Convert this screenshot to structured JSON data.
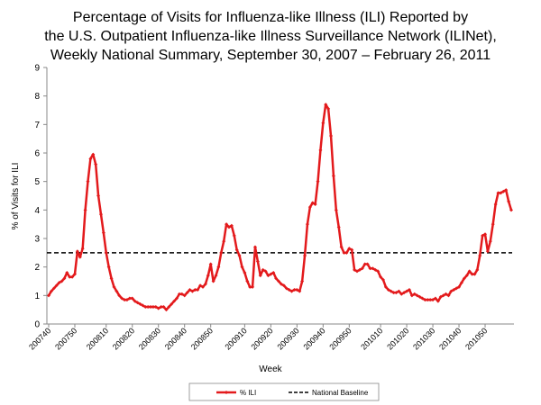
{
  "chart_data": {
    "type": "line",
    "title": [
      "Percentage of Visits for Influenza-like Illness (ILI) Reported by",
      "the U.S. Outpatient Influenza-like Illness Surveillance Network (ILINet),",
      "Weekly National Summary, September 30, 2007 – February 26, 2011"
    ],
    "x_label": "Week",
    "y_label": "% of Visits for ILI",
    "categories": [
      "200740",
      null,
      null,
      null,
      null,
      null,
      null,
      null,
      null,
      null,
      "200750",
      null,
      null,
      null,
      null,
      null,
      null,
      null,
      null,
      null,
      null,
      null,
      "200810",
      null,
      null,
      null,
      null,
      null,
      null,
      null,
      null,
      null,
      "200820",
      null,
      null,
      null,
      null,
      null,
      null,
      null,
      null,
      null,
      "200830",
      null,
      null,
      null,
      null,
      null,
      null,
      null,
      null,
      null,
      "200840",
      null,
      null,
      null,
      null,
      null,
      null,
      null,
      null,
      null,
      "200850",
      null,
      null,
      null,
      null,
      null,
      null,
      null,
      null,
      null,
      null,
      null,
      null,
      "200910",
      null,
      null,
      null,
      null,
      null,
      null,
      null,
      null,
      null,
      "200920",
      null,
      null,
      null,
      null,
      null,
      null,
      null,
      null,
      null,
      "200930",
      null,
      null,
      null,
      null,
      null,
      null,
      null,
      null,
      null,
      "200940",
      null,
      null,
      null,
      null,
      null,
      null,
      null,
      null,
      null,
      "200950",
      null,
      null,
      null,
      null,
      null,
      null,
      null,
      null,
      null,
      null,
      null,
      "201010",
      null,
      null,
      null,
      null,
      null,
      null,
      null,
      null,
      null,
      "201020",
      null,
      null,
      null,
      null,
      null,
      null,
      null,
      null,
      null,
      "201030",
      null,
      null,
      null,
      null,
      null,
      null,
      null,
      null,
      null,
      "201040",
      null,
      null,
      null,
      null,
      null,
      null,
      null,
      null,
      null,
      "201050",
      null,
      null,
      null,
      null,
      null,
      null,
      null,
      null,
      null,
      null
    ],
    "series": [
      {
        "name": "% ILI",
        "color": "#e31a1c",
        "values": [
          1.0,
          1.15,
          1.25,
          1.35,
          1.45,
          1.5,
          1.6,
          1.8,
          1.65,
          1.65,
          1.75,
          2.55,
          2.35,
          2.65,
          4.0,
          5.0,
          5.8,
          5.95,
          5.6,
          4.5,
          3.85,
          3.2,
          2.5,
          2.0,
          1.6,
          1.3,
          1.15,
          1.0,
          0.9,
          0.85,
          0.85,
          0.9,
          0.9,
          0.8,
          0.75,
          0.7,
          0.65,
          0.6,
          0.6,
          0.6,
          0.6,
          0.6,
          0.55,
          0.6,
          0.6,
          0.5,
          0.6,
          0.7,
          0.8,
          0.9,
          1.05,
          1.05,
          1.0,
          1.1,
          1.2,
          1.15,
          1.2,
          1.2,
          1.35,
          1.3,
          1.4,
          1.7,
          2.1,
          1.5,
          1.7,
          2.0,
          2.5,
          2.9,
          3.5,
          3.4,
          3.45,
          3.1,
          2.6,
          2.4,
          2.0,
          1.8,
          1.5,
          1.3,
          1.3,
          2.7,
          2.2,
          1.7,
          1.9,
          1.85,
          1.7,
          1.75,
          1.8,
          1.6,
          1.5,
          1.4,
          1.35,
          1.25,
          1.2,
          1.15,
          1.2,
          1.2,
          1.15,
          1.5,
          2.4,
          3.5,
          4.1,
          4.25,
          4.2,
          5.0,
          6.1,
          7.05,
          7.7,
          7.55,
          6.6,
          5.2,
          4.0,
          3.4,
          2.7,
          2.5,
          2.5,
          2.65,
          2.6,
          1.9,
          1.85,
          1.9,
          1.95,
          2.1,
          2.1,
          1.95,
          1.95,
          1.9,
          1.85,
          1.65,
          1.55,
          1.3,
          1.2,
          1.15,
          1.1,
          1.1,
          1.15,
          1.05,
          1.1,
          1.15,
          1.2,
          1.0,
          1.05,
          1.0,
          0.95,
          0.9,
          0.85,
          0.85,
          0.85,
          0.85,
          0.9,
          0.8,
          0.95,
          1.0,
          1.05,
          1.0,
          1.15,
          1.2,
          1.25,
          1.3,
          1.45,
          1.6,
          1.7,
          1.85,
          1.75,
          1.75,
          1.9,
          2.4,
          3.1,
          3.15,
          2.55,
          2.9,
          3.5,
          4.2,
          4.6,
          4.6,
          4.65,
          4.7,
          4.3,
          4.0
        ]
      }
    ],
    "baseline": {
      "name": "National Baseline",
      "value": 2.5,
      "color": "#000000"
    },
    "ylim": [
      0,
      9
    ],
    "yticks": [
      0,
      1,
      2,
      3,
      4,
      5,
      6,
      7,
      8,
      9
    ],
    "grid": false
  }
}
